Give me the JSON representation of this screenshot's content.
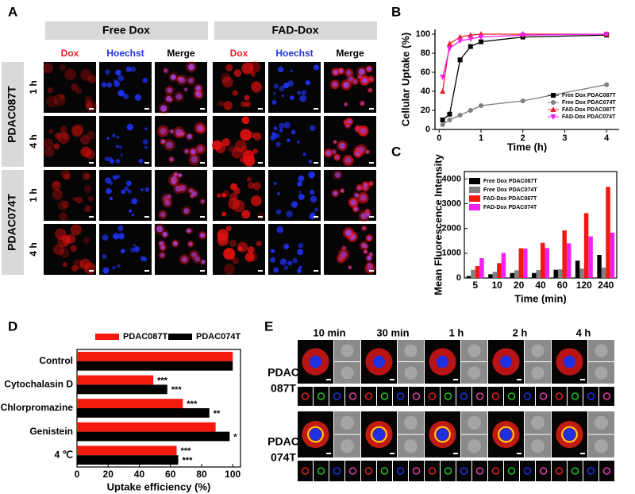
{
  "panel_a": {
    "label": "A",
    "groups": [
      {
        "title": "Free Dox",
        "columns": [
          "Dox",
          "Hoechst",
          "Merge"
        ]
      },
      {
        "title": "FAD-Dox",
        "columns": [
          "Dox",
          "Hoechst",
          "Merge"
        ]
      }
    ],
    "cell_lines": [
      {
        "name": "PDAC087T",
        "times": [
          "1 h",
          "4 h"
        ]
      },
      {
        "name": "PDAC074T",
        "times": [
          "1 h",
          "4 h"
        ]
      }
    ]
  },
  "panel_e": {
    "label": "E",
    "times": [
      "10 min",
      "30 min",
      "1 h",
      "2 h",
      "4 h"
    ],
    "cell_lines": [
      [
        "PDAC",
        "087T"
      ],
      [
        "PDAC",
        "074T"
      ]
    ]
  },
  "chart_data": [
    {
      "type": "line",
      "label": "B",
      "x_label": "Time (h)",
      "y_label": "Cellular Uptake (%)",
      "x": [
        0.083,
        0.25,
        0.5,
        0.75,
        1,
        2,
        4
      ],
      "series": [
        {
          "name": "Free Dox PDAC087T",
          "color": "#000000",
          "marker": "square",
          "values": [
            10,
            16,
            73,
            87,
            92,
            97,
            99
          ]
        },
        {
          "name": "Free Dox PDAC074T",
          "color": "#808080",
          "marker": "circle",
          "values": [
            5,
            10,
            15,
            20,
            25,
            30,
            47
          ]
        },
        {
          "name": "FAD-Dox PDAC087T",
          "color": "#e8202a",
          "marker": "triangle-up",
          "values": [
            40,
            90,
            97,
            99,
            100,
            100,
            100
          ]
        },
        {
          "name": "FAD-Dox PDAC074T",
          "color": "#f020f0",
          "marker": "triangle-down",
          "values": [
            55,
            85,
            93,
            95,
            97,
            99,
            100
          ]
        }
      ],
      "xlim": [
        -0.1,
        4.3
      ],
      "xticks": [
        0,
        1,
        2,
        3,
        4
      ],
      "ylim": [
        0,
        105
      ],
      "yticks": [
        0,
        20,
        40,
        60,
        80,
        100
      ],
      "legend": "lower right"
    },
    {
      "type": "bar",
      "label": "C",
      "x_label": "Time (min)",
      "y_label": "Mean Fluorescence Intensity",
      "categories": [
        "5",
        "10",
        "20",
        "40",
        "60",
        "120",
        "240"
      ],
      "series": [
        {
          "name": "Free Dox PDAC087T",
          "color": "#000000",
          "values": [
            80,
            150,
            200,
            200,
            330,
            700,
            930
          ]
        },
        {
          "name": "Free Dox PDAC074T",
          "color": "#808080",
          "values": [
            330,
            250,
            310,
            320,
            350,
            380,
            420
          ]
        },
        {
          "name": "FAD-Dox PDAC087T",
          "color": "#f5180f",
          "values": [
            480,
            600,
            1200,
            1420,
            1920,
            2620,
            3680
          ]
        },
        {
          "name": "FAD-Dox PDAC074T",
          "color": "#f020f0",
          "values": [
            800,
            1010,
            1190,
            1210,
            1400,
            1680,
            1830
          ]
        }
      ],
      "ylim": [
        0,
        4300
      ],
      "yticks": [
        0,
        1000,
        2000,
        3000,
        4000
      ],
      "legend": "upper left"
    },
    {
      "type": "barh",
      "label": "D",
      "x_label": "Uptake efficiency (%)",
      "categories": [
        "Control",
        "Cytochalasin D",
        "Chlorpromazine",
        "Genistein",
        "4 ℃"
      ],
      "series": [
        {
          "name": "PDAC087T",
          "color": "#f5180f",
          "values": [
            100,
            49,
            68,
            89,
            64
          ],
          "significance": [
            null,
            "***",
            "***",
            null,
            "***"
          ]
        },
        {
          "name": "PDAC074T",
          "color": "#000000",
          "values": [
            100,
            58,
            85,
            98,
            65
          ],
          "significance": [
            null,
            "***",
            "**",
            "*",
            "***"
          ]
        }
      ],
      "xlim": [
        0,
        105
      ],
      "xticks": [
        0,
        20,
        40,
        60,
        80,
        100
      ],
      "legend": "top"
    }
  ]
}
